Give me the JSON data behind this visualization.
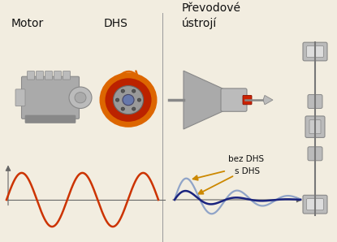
{
  "bg_color": "#f2ede0",
  "label_motor": "Motor",
  "label_dhs": "DHS",
  "label_prevodove": "Převodové\nústrojí",
  "label_bez_dhs": "bez DHS",
  "label_s_dhs": "s DHS",
  "orange_wave_color": "#cc3300",
  "blue_wave_dark": "#1a237e",
  "blue_wave_light": "#90a4c8",
  "arrow_color": "#cc8800",
  "axis_color": "#666666",
  "text_color": "#111111",
  "sep_color": "#999999",
  "engine_color": "#aaaaaa",
  "engine_dark": "#888888",
  "engine_mid": "#bbbbbb",
  "dhs_red": "#bb2200",
  "dhs_orange": "#dd6600",
  "dhs_gray": "#999999",
  "dhs_hub": "#6677aa",
  "gear_color": "#aaaaaa",
  "gear_dark": "#888888",
  "drive_color": "#bbbbbb",
  "drive_dark": "#888888"
}
